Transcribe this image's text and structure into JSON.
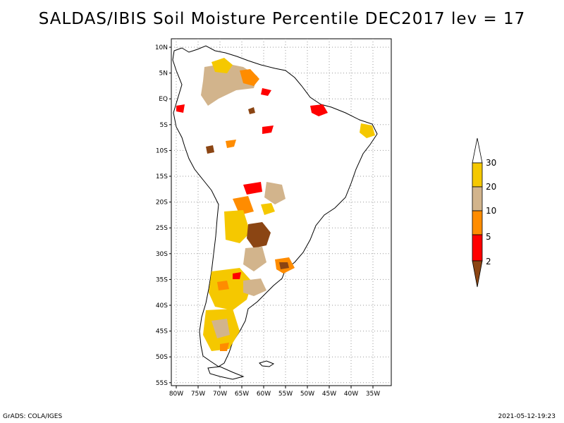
{
  "title": "SALDAS/IBIS Soil Moisture Percentile DEC2017 lev = 17",
  "map": {
    "lat_labels": [
      "10N",
      "5N",
      "EQ",
      "5S",
      "10S",
      "15S",
      "20S",
      "25S",
      "30S",
      "35S",
      "40S",
      "45S",
      "50S",
      "55S"
    ],
    "lon_labels": [
      "80W",
      "75W",
      "70W",
      "65W",
      "60W",
      "55W",
      "50W",
      "45W",
      "40W",
      "35W"
    ],
    "grid": true
  },
  "legend": {
    "levels": [
      "30",
      "20",
      "10",
      "5",
      "2"
    ],
    "colors": {
      "above30": "#ffffff",
      "c20_30": "#f5c800",
      "c10_20": "#d2b48c",
      "c5_10": "#ff8c00",
      "c2_5": "#ff0000",
      "below2": "#8b4513"
    }
  },
  "footer": {
    "left": "GrADS: COLA/IGES",
    "right": "2021-05-12-19:23"
  }
}
